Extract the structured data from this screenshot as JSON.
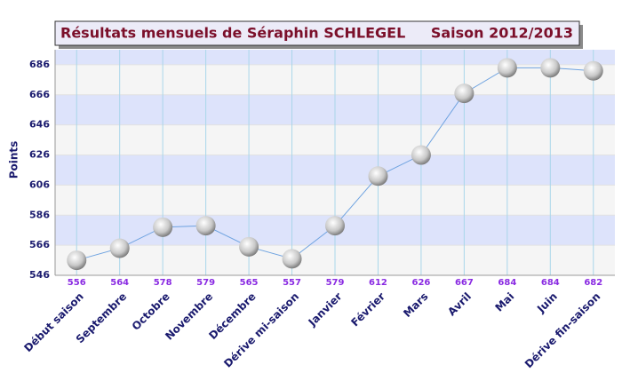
{
  "chart_data": {
    "type": "line",
    "title": "Résultats mensuels de  Séraphin SCHLEGEL",
    "subtitle": "Saison 2012/2013",
    "y_label": "Points",
    "categories": [
      "Début saison",
      "Septembre",
      "Octobre",
      "Novembre",
      "Décembre",
      "Dérive mi-saison",
      "Janvier",
      "Février",
      "Mars",
      "Avril",
      "Mai",
      "Juin",
      "Dérive fin-saison"
    ],
    "values": [
      556,
      564,
      578,
      579,
      565,
      557,
      579,
      612,
      626,
      667,
      684,
      684,
      682
    ],
    "color": "#6fa3e0",
    "ylim": [
      546,
      696
    ],
    "yticks": [
      546,
      566,
      586,
      606,
      626,
      646,
      666,
      686
    ],
    "grid": true
  }
}
